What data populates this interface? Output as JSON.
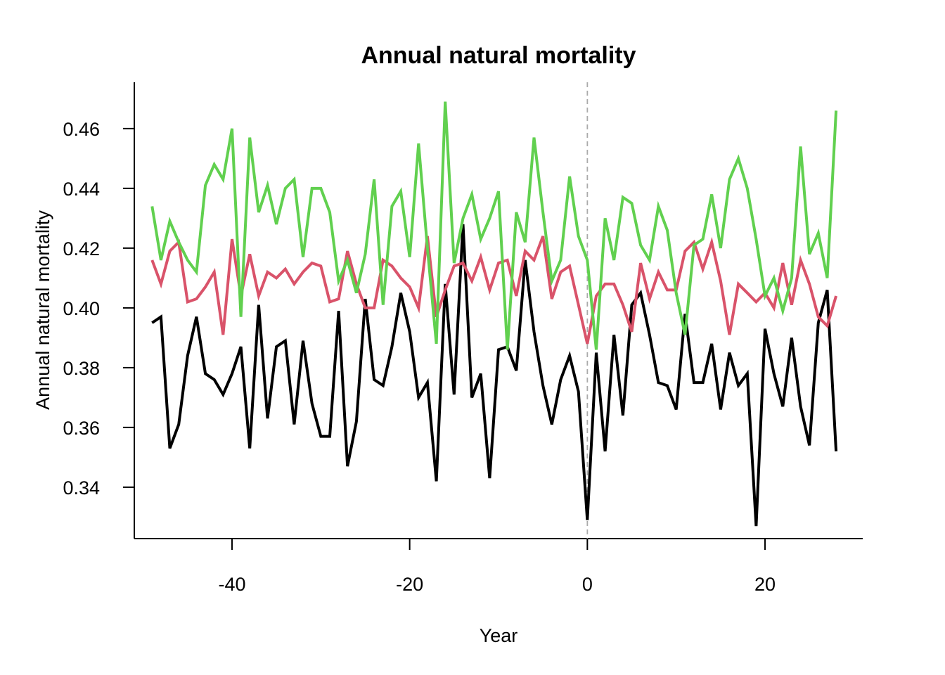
{
  "chart_data": {
    "type": "line",
    "title": "Annual natural mortality",
    "xlabel": "Year",
    "ylabel": "Annual natural mortality",
    "xlim": [
      -51,
      31
    ],
    "ylim": [
      0.3228,
      0.4755
    ],
    "xticks": [
      -40,
      -20,
      0,
      20
    ],
    "xtick_labels": [
      "-40",
      "-20",
      "0",
      "20"
    ],
    "yticks": [
      0.34,
      0.36,
      0.38,
      0.4,
      0.42,
      0.44,
      0.46
    ],
    "ytick_labels": [
      "0.34",
      "0.36",
      "0.38",
      "0.40",
      "0.42",
      "0.44",
      "0.46"
    ],
    "reference_line": {
      "x": 0,
      "style": "dashed",
      "color": "#aaaaaa"
    },
    "grid": false,
    "x": [
      -49,
      -48,
      -47,
      -46,
      -45,
      -44,
      -43,
      -42,
      -41,
      -40,
      -39,
      -38,
      -37,
      -36,
      -35,
      -34,
      -33,
      -32,
      -31,
      -30,
      -29,
      -28,
      -27,
      -26,
      -25,
      -24,
      -23,
      -22,
      -21,
      -20,
      -19,
      -18,
      -17,
      -16,
      -15,
      -14,
      -13,
      -12,
      -11,
      -10,
      -9,
      -8,
      -7,
      -6,
      -5,
      -4,
      -3,
      -2,
      -1,
      0,
      1,
      2,
      3,
      4,
      5,
      6,
      7,
      8,
      9,
      10,
      11,
      12,
      13,
      14,
      15,
      16,
      17,
      18,
      19,
      20,
      21,
      22,
      23,
      24,
      25,
      26,
      27,
      28
    ],
    "series": [
      {
        "color": "#000000",
        "values": [
          0.395,
          0.397,
          0.353,
          0.361,
          0.384,
          0.397,
          0.378,
          0.376,
          0.371,
          0.378,
          0.387,
          0.353,
          0.401,
          0.363,
          0.387,
          0.389,
          0.361,
          0.389,
          0.368,
          0.357,
          0.357,
          0.399,
          0.347,
          0.362,
          0.403,
          0.376,
          0.374,
          0.387,
          0.405,
          0.392,
          0.37,
          0.375,
          0.342,
          0.408,
          0.371,
          0.428,
          0.37,
          0.378,
          0.343,
          0.386,
          0.387,
          0.379,
          0.416,
          0.392,
          0.374,
          0.361,
          0.376,
          0.384,
          0.372,
          0.329,
          0.385,
          0.352,
          0.391,
          0.364,
          0.401,
          0.405,
          0.391,
          0.375,
          0.374,
          0.366,
          0.398,
          0.375,
          0.375,
          0.388,
          0.366,
          0.385,
          0.374,
          0.378,
          0.327,
          0.393,
          0.378,
          0.367,
          0.39,
          0.367,
          0.354,
          0.395,
          0.406,
          0.352
        ]
      },
      {
        "color": "#d9536a",
        "values": [
          0.416,
          0.408,
          0.419,
          0.422,
          0.402,
          0.403,
          0.407,
          0.412,
          0.391,
          0.423,
          0.404,
          0.418,
          0.404,
          0.412,
          0.41,
          0.413,
          0.408,
          0.412,
          0.415,
          0.414,
          0.402,
          0.403,
          0.419,
          0.408,
          0.4,
          0.4,
          0.416,
          0.414,
          0.41,
          0.407,
          0.4,
          0.424,
          0.397,
          0.406,
          0.414,
          0.415,
          0.409,
          0.417,
          0.406,
          0.415,
          0.416,
          0.404,
          0.419,
          0.416,
          0.424,
          0.403,
          0.412,
          0.414,
          0.401,
          0.388,
          0.404,
          0.408,
          0.408,
          0.401,
          0.392,
          0.415,
          0.403,
          0.412,
          0.406,
          0.406,
          0.419,
          0.422,
          0.413,
          0.422,
          0.409,
          0.391,
          0.408,
          0.405,
          0.402,
          0.405,
          0.4,
          0.415,
          0.401,
          0.416,
          0.408,
          0.397,
          0.394,
          0.404
        ]
      },
      {
        "color": "#61d04f",
        "values": [
          0.434,
          0.416,
          0.429,
          0.422,
          0.416,
          0.412,
          0.441,
          0.448,
          0.443,
          0.46,
          0.397,
          0.457,
          0.432,
          0.441,
          0.428,
          0.44,
          0.443,
          0.417,
          0.44,
          0.44,
          0.432,
          0.409,
          0.416,
          0.405,
          0.418,
          0.443,
          0.401,
          0.434,
          0.439,
          0.417,
          0.455,
          0.42,
          0.388,
          0.469,
          0.415,
          0.43,
          0.438,
          0.423,
          0.43,
          0.439,
          0.386,
          0.432,
          0.422,
          0.457,
          0.432,
          0.409,
          0.416,
          0.444,
          0.424,
          0.416,
          0.386,
          0.43,
          0.416,
          0.437,
          0.435,
          0.421,
          0.416,
          0.434,
          0.426,
          0.405,
          0.391,
          0.421,
          0.423,
          0.438,
          0.42,
          0.443,
          0.45,
          0.44,
          0.423,
          0.404,
          0.41,
          0.399,
          0.41,
          0.454,
          0.418,
          0.425,
          0.41,
          0.466
        ]
      }
    ]
  }
}
